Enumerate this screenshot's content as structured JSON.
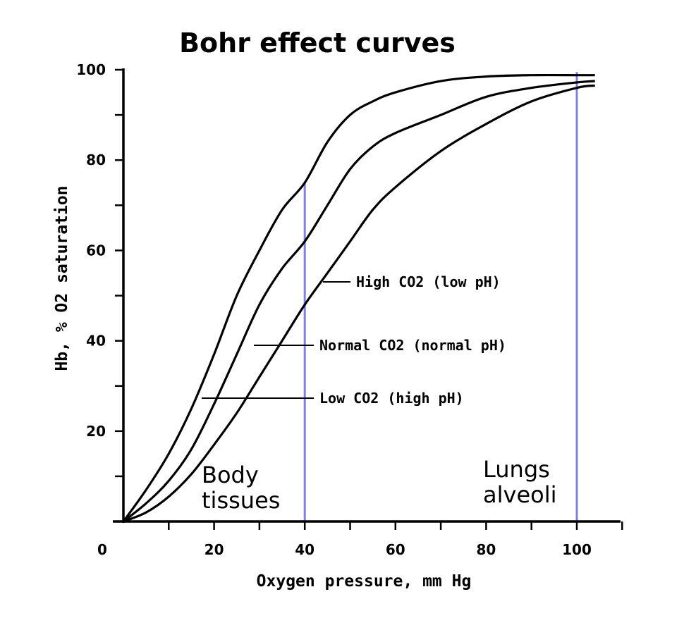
{
  "chart_data": {
    "type": "line",
    "title": "Bohr effect curves",
    "xlabel": "Oxygen pressure, mm Hg",
    "ylabel": "Hb, % O2 saturation",
    "xlim": [
      0,
      105
    ],
    "ylim": [
      0,
      100
    ],
    "x_ticks": [
      0,
      20,
      40,
      60,
      80,
      100
    ],
    "y_ticks": [
      20,
      40,
      60,
      80,
      100
    ],
    "grid": false,
    "series": [
      {
        "name": "Low CO2 (high pH)",
        "x": [
          0,
          5,
          10,
          15,
          20,
          25,
          30,
          35,
          40,
          45,
          50,
          55,
          60,
          70,
          80,
          90,
          100,
          104
        ],
        "values": [
          0,
          7,
          15,
          25,
          37,
          50,
          60,
          69,
          75,
          84,
          90,
          93,
          95,
          97.5,
          98.5,
          98.8,
          98.8,
          98.8
        ]
      },
      {
        "name": "Normal CO2 (normal pH)",
        "x": [
          0,
          5,
          10,
          15,
          20,
          25,
          30,
          35,
          40,
          45,
          50,
          55,
          60,
          70,
          80,
          90,
          100,
          104
        ],
        "values": [
          0,
          4,
          9,
          16,
          26,
          37,
          48,
          56,
          62,
          70,
          78,
          83,
          86,
          90,
          94,
          96,
          97.2,
          97.5
        ]
      },
      {
        "name": "High CO2 (low pH)",
        "x": [
          0,
          5,
          10,
          15,
          20,
          25,
          30,
          35,
          40,
          45,
          50,
          55,
          60,
          70,
          80,
          90,
          100,
          104
        ],
        "values": [
          0,
          2,
          5.5,
          10.5,
          17,
          24,
          32,
          40,
          48,
          55,
          62,
          69,
          74,
          82,
          88,
          93,
          96,
          96.5
        ]
      }
    ],
    "reference_lines": [
      {
        "x": 40,
        "y_top": 75,
        "label": "Body\ntissues",
        "color": "#8080e0"
      },
      {
        "x": 100,
        "y_top": 99.5,
        "label": "Lungs\nalveoli",
        "color": "#8080e0"
      }
    ]
  }
}
